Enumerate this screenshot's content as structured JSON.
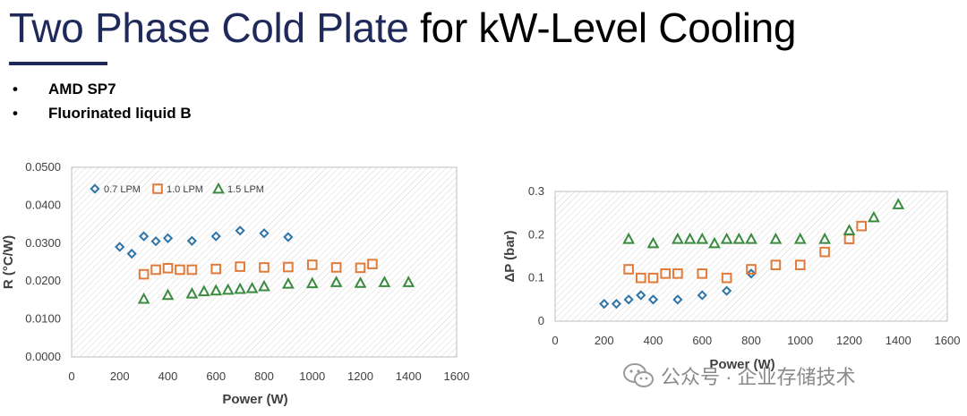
{
  "slide": {
    "title_part1": "Two Phase Cold Plate",
    "title_part2": "for kW-Level Cooling",
    "bullets": [
      "AMD SP7",
      "Fluorinated liquid B"
    ]
  },
  "watermark": {
    "text": "公众号 · 企业存储技术",
    "icon": "wechat-icon"
  },
  "colors": {
    "title_navy": "#1f2a5a",
    "series_blue": "#2e74a8",
    "series_orange": "#e07b39",
    "series_green": "#3a8a3f"
  },
  "chart_data": [
    {
      "type": "scatter",
      "title": "",
      "xlabel": "Power (W)",
      "ylabel": "R (°C/W)",
      "xlim": [
        0,
        1600
      ],
      "ylim": [
        0,
        0.05
      ],
      "xticks": [
        "0",
        "200",
        "400",
        "600",
        "800",
        "1000",
        "1200",
        "1400",
        "1600"
      ],
      "yticks": [
        "0.0000",
        "0.0100",
        "0.0200",
        "0.0300",
        "0.0400",
        "0.0500"
      ],
      "legend_position": "top-left",
      "series": [
        {
          "name": "0.7 LPM",
          "marker": "diamond",
          "x": [
            200,
            250,
            300,
            350,
            400,
            500,
            600,
            700,
            800,
            900
          ],
          "y": [
            0.029,
            0.0272,
            0.0318,
            0.0305,
            0.0313,
            0.0306,
            0.0318,
            0.0333,
            0.0326,
            0.0316
          ]
        },
        {
          "name": "1.0 LPM",
          "marker": "square",
          "x": [
            300,
            350,
            400,
            450,
            500,
            600,
            700,
            800,
            900,
            1000,
            1100,
            1200,
            1250
          ],
          "y": [
            0.0218,
            0.023,
            0.0234,
            0.023,
            0.023,
            0.0232,
            0.0238,
            0.0236,
            0.0237,
            0.0243,
            0.0236,
            0.0235,
            0.0245
          ]
        },
        {
          "name": "1.5 LPM",
          "marker": "triangle",
          "x": [
            300,
            400,
            500,
            550,
            600,
            650,
            700,
            750,
            800,
            900,
            1000,
            1100,
            1200,
            1300,
            1400
          ],
          "y": [
            0.0153,
            0.0163,
            0.0167,
            0.0173,
            0.0175,
            0.0177,
            0.0179,
            0.0181,
            0.0186,
            0.0193,
            0.0194,
            0.0197,
            0.0195,
            0.0197,
            0.0197
          ]
        }
      ]
    },
    {
      "type": "scatter",
      "title": "",
      "xlabel": "Power (W)",
      "ylabel": "ΔP (bar)",
      "xlim": [
        0,
        1600
      ],
      "ylim": [
        0,
        0.3
      ],
      "xticks": [
        "0",
        "200",
        "400",
        "600",
        "800",
        "1000",
        "1200",
        "1400",
        "1600"
      ],
      "yticks": [
        "0",
        "0.1",
        "0.2",
        "0.3"
      ],
      "legend_position": "none",
      "series": [
        {
          "name": "0.7 LPM",
          "marker": "diamond",
          "x": [
            200,
            250,
            300,
            350,
            400,
            500,
            600,
            700,
            800
          ],
          "y": [
            0.04,
            0.04,
            0.05,
            0.06,
            0.05,
            0.05,
            0.06,
            0.07,
            0.11
          ]
        },
        {
          "name": "1.0 LPM",
          "marker": "square",
          "x": [
            300,
            350,
            400,
            450,
            500,
            600,
            700,
            800,
            900,
            1000,
            1100,
            1200,
            1250
          ],
          "y": [
            0.12,
            0.1,
            0.1,
            0.11,
            0.11,
            0.11,
            0.1,
            0.12,
            0.13,
            0.13,
            0.16,
            0.19,
            0.22
          ]
        },
        {
          "name": "1.5 LPM",
          "marker": "triangle",
          "x": [
            300,
            400,
            500,
            550,
            600,
            650,
            700,
            750,
            800,
            900,
            1000,
            1100,
            1200,
            1300,
            1400
          ],
          "y": [
            0.19,
            0.18,
            0.19,
            0.19,
            0.19,
            0.18,
            0.19,
            0.19,
            0.19,
            0.19,
            0.19,
            0.19,
            0.21,
            0.24,
            0.27
          ]
        }
      ]
    }
  ]
}
